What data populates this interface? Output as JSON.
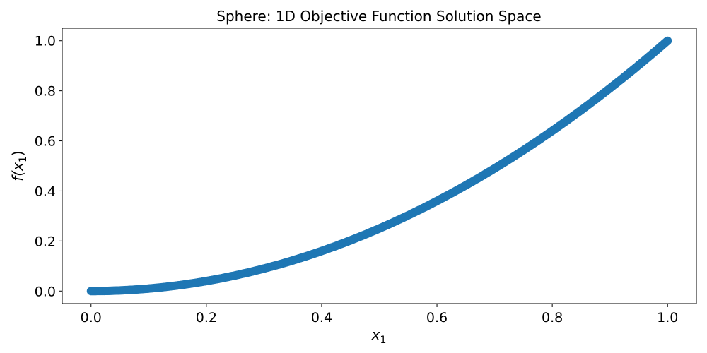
{
  "chart_data": {
    "type": "scatter",
    "title": "Sphere: 1D Objective Function Solution Space",
    "xlabel": {
      "base": "x",
      "sub": "1"
    },
    "ylabel": {
      "pre": "f(",
      "base": "x",
      "sub": "1",
      "post": ")"
    },
    "xlim": [
      -0.05,
      1.05
    ],
    "ylim": [
      -0.05,
      1.05
    ],
    "xticks": [
      0.0,
      0.2,
      0.4,
      0.6,
      0.8,
      1.0
    ],
    "xtick_labels": [
      "0.0",
      "0.2",
      "0.4",
      "0.6",
      "0.8",
      "1.0"
    ],
    "yticks": [
      0.0,
      0.2,
      0.4,
      0.6,
      0.8,
      1.0
    ],
    "ytick_labels": [
      "0.0",
      "0.2",
      "0.4",
      "0.6",
      "0.8",
      "1.0"
    ],
    "grid": false,
    "marker_color": "#1f77b4",
    "series": [
      {
        "x": [
          0.0,
          0.025,
          0.05,
          0.075,
          0.1,
          0.125,
          0.15,
          0.175,
          0.2,
          0.225,
          0.25,
          0.275,
          0.3,
          0.325,
          0.35,
          0.375,
          0.4,
          0.425,
          0.45,
          0.475,
          0.5,
          0.525,
          0.55,
          0.575,
          0.6,
          0.625,
          0.65,
          0.675,
          0.7,
          0.725,
          0.75,
          0.775,
          0.8,
          0.825,
          0.85,
          0.875,
          0.9,
          0.925,
          0.95,
          0.975,
          1.0
        ],
        "y": [
          0.0,
          0.0006,
          0.0025,
          0.0056,
          0.01,
          0.0156,
          0.0225,
          0.0306,
          0.04,
          0.0506,
          0.0625,
          0.0756,
          0.09,
          0.1056,
          0.1225,
          0.1406,
          0.16,
          0.1806,
          0.2025,
          0.2256,
          0.25,
          0.2756,
          0.3025,
          0.3306,
          0.36,
          0.3906,
          0.4225,
          0.4556,
          0.49,
          0.5256,
          0.5625,
          0.6006,
          0.64,
          0.6806,
          0.7225,
          0.7656,
          0.81,
          0.8556,
          0.9025,
          0.9506,
          1.0
        ]
      }
    ]
  }
}
